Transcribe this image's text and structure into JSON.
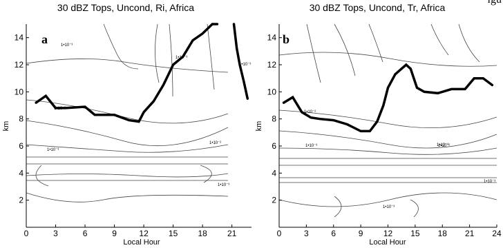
{
  "corner_text": "igu",
  "chart_data": [
    {
      "type": "contour",
      "panel_letter": "a",
      "title": "30 dBZ Tops, Uncond, Ri, Africa",
      "xlabel": "Local Hour",
      "ylabel": "km",
      "xlim": [
        0,
        23
      ],
      "ylim": [
        0,
        15
      ],
      "xticks": [
        "0",
        "3",
        "6",
        "9",
        "12",
        "15",
        "18",
        "21"
      ],
      "yticks": [
        "2",
        "4",
        "6",
        "8",
        "10",
        "12",
        "14"
      ],
      "contour_labels": [
        "1•10⁻³",
        "1•10⁻²",
        "1•10⁻³",
        "1•10⁻²",
        "1•10⁻³",
        "1•10⁻³",
        "1•10⁻³"
      ],
      "bold_contour_x": [
        1,
        2,
        3,
        4,
        6,
        7,
        9,
        10.5,
        11.5,
        12,
        13,
        14,
        15,
        16,
        17,
        18,
        19,
        19.5
      ],
      "bold_contour_y": [
        9.2,
        9.7,
        8.8,
        8.8,
        8.9,
        8.3,
        8.3,
        7.9,
        7.8,
        8.5,
        9.3,
        10.5,
        12,
        12.6,
        13.8,
        14.3,
        15,
        15
      ],
      "bold_contour2_x": [
        21.2,
        21.5,
        21.8,
        22.2,
        22.6
      ],
      "bold_contour2_y": [
        15,
        13.2,
        12.0,
        10.8,
        9.5
      ]
    },
    {
      "type": "contour",
      "panel_letter": "b",
      "title": "30 dBZ Tops, Uncond, Tr, Africa",
      "xlabel": "Local Hour",
      "ylabel": "km",
      "xlim": [
        0,
        24
      ],
      "ylim": [
        0,
        15
      ],
      "xticks": [
        "0",
        "3",
        "6",
        "9",
        "12",
        "15",
        "18",
        "21",
        "24"
      ],
      "yticks": [
        "2",
        "4",
        "6",
        "8",
        "10",
        "12",
        "14"
      ],
      "contour_labels": [
        "1•10⁻³",
        "1•10⁻²",
        "1•10⁻³",
        "1•10⁻²",
        "1•10⁻³",
        "1•10⁻³"
      ],
      "bold_contour_x": [
        0.5,
        1.5,
        2.5,
        3.5,
        4.5,
        6,
        7.5,
        9,
        10,
        10.8,
        11.5,
        12,
        12.8,
        14,
        14.5,
        15.2,
        16,
        17.5,
        19,
        20.5,
        21.5,
        22.5,
        23.5
      ],
      "bold_contour_y": [
        9.2,
        9.6,
        8.5,
        8.1,
        8.0,
        7.9,
        7.6,
        7.1,
        7.1,
        7.8,
        9.0,
        10.3,
        11.3,
        12.0,
        11.7,
        10.3,
        10.0,
        9.9,
        10.2,
        10.2,
        11.0,
        11.0,
        10.5
      ]
    }
  ]
}
